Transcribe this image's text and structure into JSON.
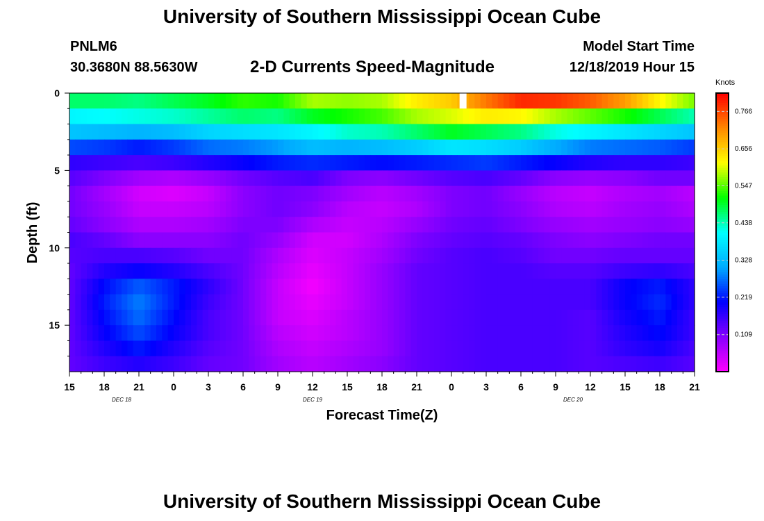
{
  "header": {
    "title": "University of Southern Mississippi Ocean Cube",
    "station_id": "PNLM6",
    "coordinates": "30.3680N 88.5630W",
    "product": "2-D Currents Speed-Magnitude",
    "model_start_label": "Model Start Time",
    "model_start_value": "12/18/2019 Hour 15"
  },
  "footer": {
    "title": "University of Southern Mississippi Ocean Cube"
  },
  "colors": {
    "colormap": [
      "#ff00ff",
      "#8800ff",
      "#0000ff",
      "#00aaff",
      "#00ffff",
      "#00ff00",
      "#ffff00",
      "#ff8800",
      "#ff0000"
    ],
    "missing": "#ffffff"
  },
  "chart_data": {
    "type": "heatmap",
    "xlabel": "Forecast Time(Z)",
    "ylabel": "Depth (ft)",
    "x_tick_labels": [
      "15",
      "18",
      "21",
      "0",
      "3",
      "6",
      "9",
      "12",
      "15",
      "18",
      "21",
      "0",
      "3",
      "6",
      "9",
      "12",
      "15",
      "18",
      "21"
    ],
    "x_range_hours": [
      0,
      54
    ],
    "date_labels": [
      {
        "text": "DEC 18",
        "hour": 4.5
      },
      {
        "text": "DEC 19",
        "hour": 21
      },
      {
        "text": "DEC 20",
        "hour": 43.5
      }
    ],
    "y_ticks": [
      0,
      5,
      10,
      15
    ],
    "y_range": [
      0,
      18
    ],
    "y_inverted": true,
    "colorbar": {
      "units_label": "Knots",
      "range": [
        0,
        0.82
      ],
      "tick_values": [
        0.109,
        0.219,
        0.328,
        0.438,
        0.547,
        0.656,
        0.766
      ],
      "tick_labels": [
        "0.109",
        "0.219",
        "0.328",
        "0.438",
        "0.547",
        "0.656",
        "0.766"
      ]
    },
    "speed_knots": {
      "description": "approximate surface-to-bottom speed field; rows = depth layers (ft), columns = forecast hours",
      "rows_depth_ft": [
        0,
        1,
        2,
        3,
        4,
        5,
        6,
        7,
        8,
        9,
        10,
        11,
        12,
        13,
        14,
        15,
        16,
        17
      ],
      "cols_hours": [
        0,
        3,
        6,
        9,
        12,
        15,
        18,
        21,
        24,
        27,
        30,
        33,
        36,
        39,
        42,
        45,
        48,
        51,
        54
      ],
      "values": [
        [
          0.47,
          0.47,
          0.46,
          0.48,
          0.5,
          0.53,
          0.52,
          0.58,
          0.57,
          0.58,
          0.63,
          0.66,
          0.73,
          0.79,
          0.78,
          0.75,
          0.7,
          0.62,
          0.56
        ],
        [
          0.4,
          0.41,
          0.42,
          0.43,
          0.45,
          0.47,
          0.46,
          0.5,
          0.52,
          0.54,
          0.58,
          0.6,
          0.63,
          0.62,
          0.58,
          0.55,
          0.52,
          0.48,
          0.44
        ],
        [
          0.34,
          0.33,
          0.32,
          0.33,
          0.36,
          0.37,
          0.38,
          0.4,
          0.43,
          0.44,
          0.47,
          0.5,
          0.48,
          0.46,
          0.42,
          0.4,
          0.38,
          0.36,
          0.34
        ],
        [
          0.25,
          0.24,
          0.22,
          0.24,
          0.27,
          0.28,
          0.3,
          0.33,
          0.32,
          0.33,
          0.35,
          0.38,
          0.37,
          0.35,
          0.31,
          0.28,
          0.27,
          0.26,
          0.24
        ],
        [
          0.17,
          0.16,
          0.15,
          0.16,
          0.18,
          0.2,
          0.22,
          0.23,
          0.22,
          0.21,
          0.22,
          0.23,
          0.24,
          0.22,
          0.2,
          0.18,
          0.17,
          0.17,
          0.16
        ],
        [
          0.14,
          0.11,
          0.08,
          0.07,
          0.09,
          0.12,
          0.14,
          0.15,
          0.11,
          0.1,
          0.12,
          0.14,
          0.15,
          0.13,
          0.1,
          0.09,
          0.1,
          0.12,
          0.12
        ],
        [
          0.12,
          0.08,
          0.04,
          0.03,
          0.05,
          0.1,
          0.12,
          0.11,
          0.08,
          0.06,
          0.08,
          0.11,
          0.12,
          0.09,
          0.06,
          0.05,
          0.07,
          0.08,
          0.06
        ],
        [
          0.12,
          0.09,
          0.05,
          0.05,
          0.06,
          0.1,
          0.12,
          0.1,
          0.06,
          0.05,
          0.07,
          0.11,
          0.12,
          0.1,
          0.07,
          0.06,
          0.08,
          0.09,
          0.07
        ],
        [
          0.13,
          0.1,
          0.07,
          0.07,
          0.08,
          0.11,
          0.11,
          0.07,
          0.05,
          0.06,
          0.09,
          0.12,
          0.13,
          0.11,
          0.09,
          0.08,
          0.09,
          0.1,
          0.09
        ],
        [
          0.15,
          0.13,
          0.1,
          0.1,
          0.1,
          0.12,
          0.09,
          0.04,
          0.04,
          0.07,
          0.11,
          0.13,
          0.14,
          0.13,
          0.11,
          0.1,
          0.11,
          0.12,
          0.12
        ],
        [
          0.14,
          0.15,
          0.15,
          0.14,
          0.12,
          0.12,
          0.07,
          0.03,
          0.05,
          0.08,
          0.12,
          0.14,
          0.15,
          0.14,
          0.12,
          0.12,
          0.13,
          0.13,
          0.13
        ],
        [
          0.13,
          0.18,
          0.2,
          0.18,
          0.15,
          0.12,
          0.06,
          0.02,
          0.05,
          0.09,
          0.13,
          0.14,
          0.15,
          0.15,
          0.14,
          0.14,
          0.16,
          0.17,
          0.15
        ],
        [
          0.13,
          0.21,
          0.26,
          0.22,
          0.17,
          0.12,
          0.05,
          0.01,
          0.05,
          0.09,
          0.13,
          0.14,
          0.15,
          0.15,
          0.15,
          0.15,
          0.2,
          0.22,
          0.17
        ],
        [
          0.13,
          0.22,
          0.28,
          0.22,
          0.16,
          0.12,
          0.05,
          0.02,
          0.05,
          0.09,
          0.13,
          0.14,
          0.15,
          0.15,
          0.15,
          0.15,
          0.2,
          0.23,
          0.17
        ],
        [
          0.13,
          0.21,
          0.27,
          0.21,
          0.15,
          0.12,
          0.05,
          0.03,
          0.06,
          0.09,
          0.13,
          0.14,
          0.15,
          0.15,
          0.15,
          0.14,
          0.19,
          0.22,
          0.16
        ],
        [
          0.13,
          0.2,
          0.25,
          0.2,
          0.15,
          0.12,
          0.06,
          0.04,
          0.06,
          0.09,
          0.13,
          0.14,
          0.15,
          0.15,
          0.15,
          0.14,
          0.18,
          0.21,
          0.16
        ],
        [
          0.13,
          0.18,
          0.22,
          0.18,
          0.14,
          0.12,
          0.07,
          0.05,
          0.07,
          0.09,
          0.13,
          0.14,
          0.15,
          0.15,
          0.15,
          0.14,
          0.17,
          0.19,
          0.15
        ],
        [
          0.13,
          0.16,
          0.18,
          0.16,
          0.13,
          0.12,
          0.08,
          0.06,
          0.08,
          0.1,
          0.13,
          0.14,
          0.15,
          0.15,
          0.15,
          0.14,
          0.15,
          0.16,
          0.14
        ]
      ],
      "missing_cells": [
        {
          "depth_row": 0,
          "hour": 34
        }
      ]
    }
  }
}
